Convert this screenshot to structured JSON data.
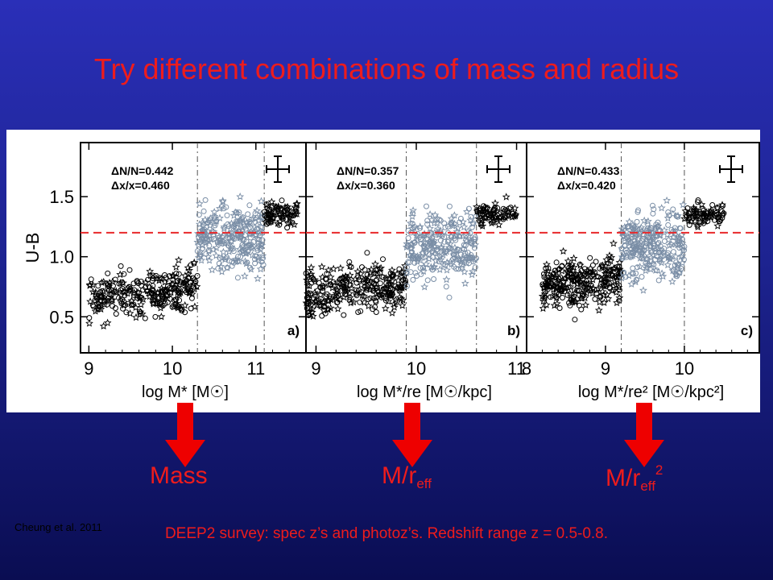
{
  "slide": {
    "title": "Try different combinations of mass and radius",
    "credit": "Cheung et al. 2011",
    "labels": {
      "mass": "Mass",
      "mr_base": "M/r",
      "mr_sub": "eff",
      "mr2_base": "M/r",
      "mr2_sub": "eff",
      "mr2_sup": "2"
    },
    "footnote": "DEEP2 survey: spec z’s and photoz’s.  Redshift range z = 0.5-0.8."
  },
  "colors": {
    "title": "#ee1c1c",
    "arrow": "#ee0000",
    "background": "#1d2390",
    "points_black": "#000000",
    "points_gray": "#7a8ea6",
    "threshold_line": "#e8292b"
  },
  "chart_data": [
    {
      "type": "scatter",
      "panel": "a)",
      "ylabel": "U-B",
      "xlabel": "log M* [M☉]",
      "xlim": [
        8.9,
        11.6
      ],
      "ylim": [
        0.2,
        1.95
      ],
      "xticks": [
        "9",
        "10",
        "11"
      ],
      "yticks": [
        "0.5",
        "1.0",
        "1.5"
      ],
      "y_threshold": 1.2,
      "vertical_lines": [
        10.3,
        11.1
      ],
      "stats": [
        "ΔN/N=0.442",
        "Δx/x=0.460"
      ],
      "series": [
        {
          "color": "black",
          "x_range": [
            9.0,
            10.3
          ],
          "y_center": 0.65,
          "spread": 0.2
        },
        {
          "color": "gray",
          "x_range": [
            10.3,
            11.1
          ],
          "y_center": 1.15,
          "spread": 0.3
        },
        {
          "color": "black",
          "x_range": [
            11.1,
            11.5
          ],
          "y_center": 1.35,
          "spread": 0.1
        }
      ]
    },
    {
      "type": "scatter",
      "panel": "b)",
      "ylabel": "",
      "xlabel": "log M*/re [M☉/kpc]",
      "xlim": [
        8.9,
        11.1
      ],
      "ylim": [
        0.2,
        1.95
      ],
      "xticks": [
        "9",
        "10",
        "11"
      ],
      "yticks": [],
      "y_threshold": 1.2,
      "vertical_lines": [
        9.9,
        10.6
      ],
      "stats": [
        "ΔN/N=0.357",
        "Δx/x=0.360"
      ],
      "series": [
        {
          "color": "black",
          "x_range": [
            8.9,
            9.9
          ],
          "y_center": 0.7,
          "spread": 0.2
        },
        {
          "color": "gray",
          "x_range": [
            9.9,
            10.6
          ],
          "y_center": 1.1,
          "spread": 0.3
        },
        {
          "color": "black",
          "x_range": [
            10.6,
            11.0
          ],
          "y_center": 1.35,
          "spread": 0.1
        }
      ]
    },
    {
      "type": "scatter",
      "panel": "c)",
      "ylabel": "",
      "xlabel": "log M*/re² [M☉/kpc²]",
      "xlim": [
        8.0,
        10.95
      ],
      "ylim": [
        0.2,
        1.95
      ],
      "xticks": [
        "8",
        "9",
        "10"
      ],
      "yticks": [],
      "y_threshold": 1.2,
      "vertical_lines": [
        9.2,
        10.0
      ],
      "stats": [
        "ΔN/N=0.433",
        "Δx/x=0.420"
      ],
      "series": [
        {
          "color": "black",
          "x_range": [
            8.2,
            9.2
          ],
          "y_center": 0.75,
          "spread": 0.2
        },
        {
          "color": "gray",
          "x_range": [
            9.2,
            10.0
          ],
          "y_center": 1.1,
          "spread": 0.3
        },
        {
          "color": "black",
          "x_range": [
            10.0,
            10.5
          ],
          "y_center": 1.35,
          "spread": 0.1
        }
      ]
    }
  ]
}
